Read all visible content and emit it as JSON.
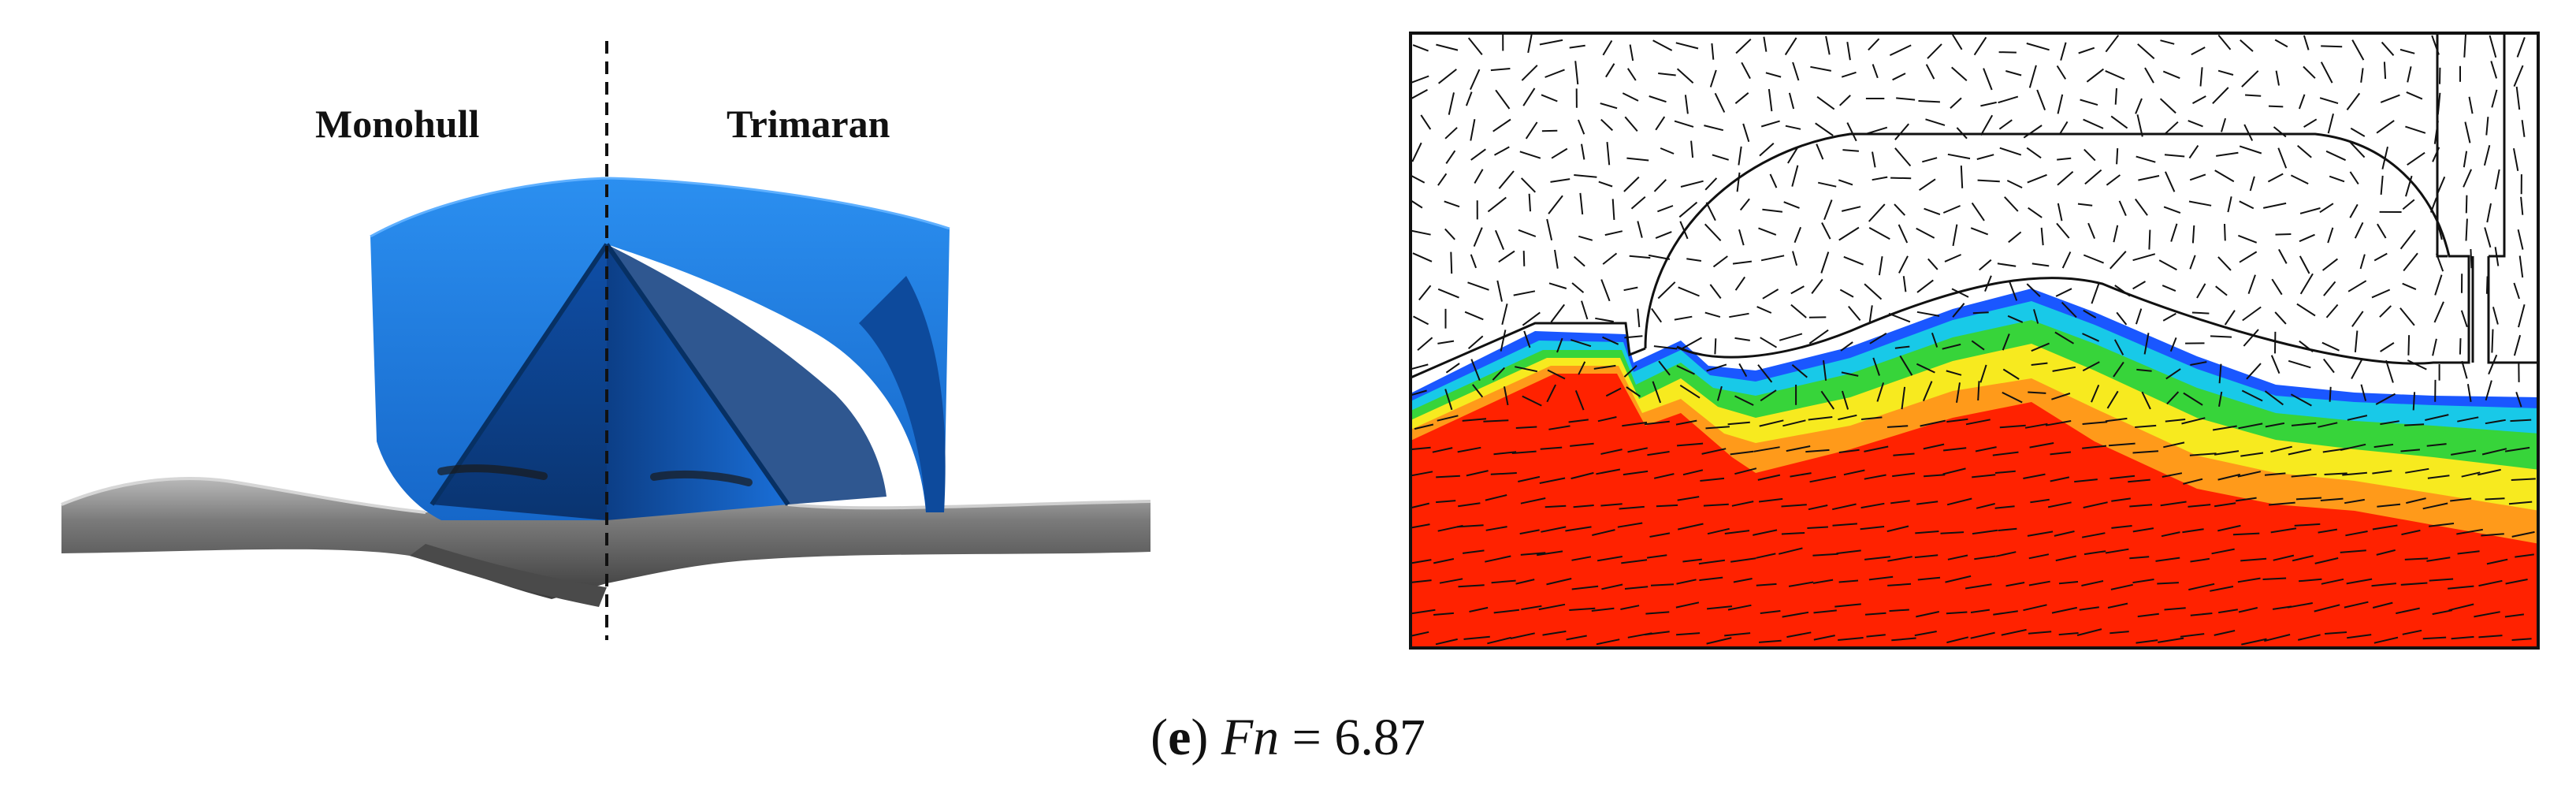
{
  "figure": {
    "left_labels": {
      "monohull": "Monohull",
      "trimaran": "Trimaran"
    },
    "caption": {
      "open_paren": "(",
      "letter": "e",
      "close_paren": ")",
      "symbol": "Fn",
      "equals": " = ",
      "value": "6.87"
    },
    "colors": {
      "hull_blue": "#1f7fe6",
      "hull_dark": "#0a3a7a",
      "water_gray": "#6b6b6b",
      "flow_red": "#ff2200",
      "flow_orange": "#ff9a1a",
      "flow_yellow": "#f7ea1f",
      "flow_green": "#37d43a",
      "flow_cyan": "#18c9e8",
      "flow_blue": "#1a57ff"
    }
  }
}
